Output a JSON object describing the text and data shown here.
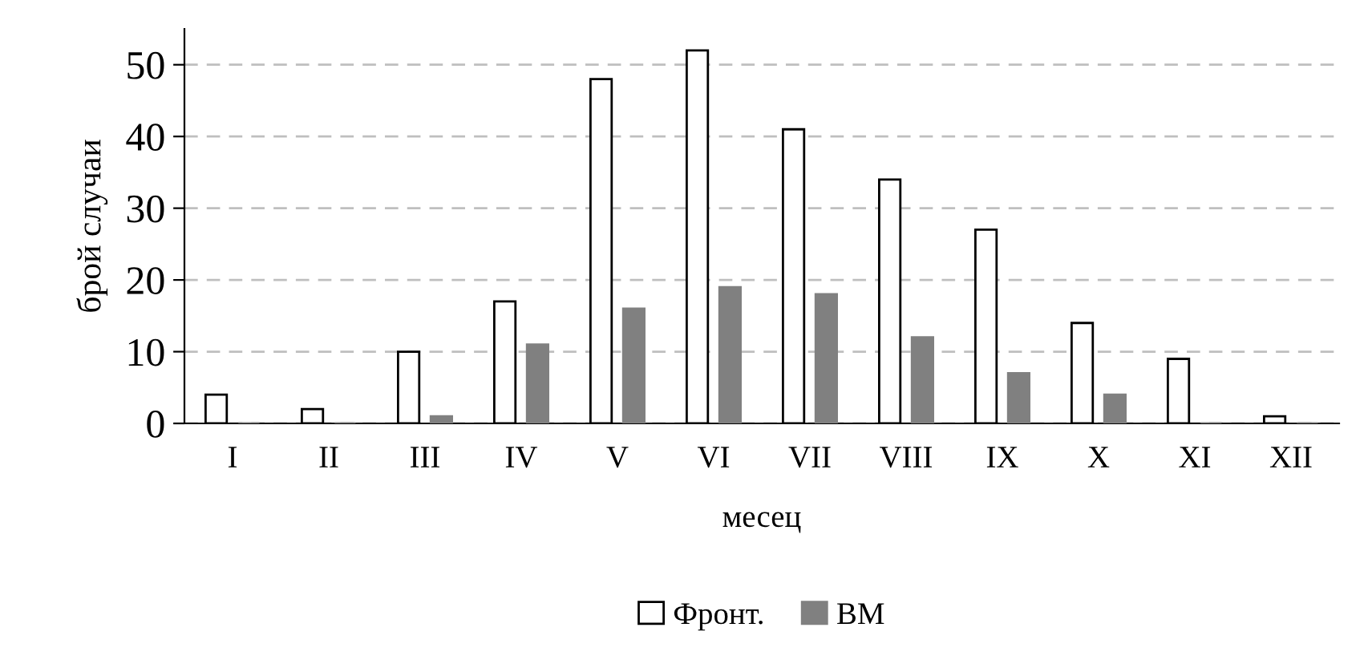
{
  "chart_data": {
    "type": "bar",
    "xlabel": "месец",
    "ylabel": "брой случаи",
    "categories": [
      "I",
      "II",
      "III",
      "IV",
      "V",
      "VI",
      "VII",
      "VIII",
      "IX",
      "X",
      "XI",
      "XII"
    ],
    "series": [
      {
        "name": "Фронт.",
        "color": "#ffffff",
        "values": [
          4,
          2,
          10,
          17,
          48,
          52,
          41,
          34,
          27,
          14,
          9,
          1
        ]
      },
      {
        "name": "ВМ",
        "color": "#808080",
        "values": [
          0,
          0,
          1,
          11,
          16,
          19,
          18,
          12,
          7,
          4,
          0,
          0
        ]
      }
    ],
    "ylim": [
      0,
      55
    ],
    "yticks": [
      0,
      10,
      20,
      30,
      40,
      50
    ],
    "grid": "y",
    "legend": "bottom"
  }
}
